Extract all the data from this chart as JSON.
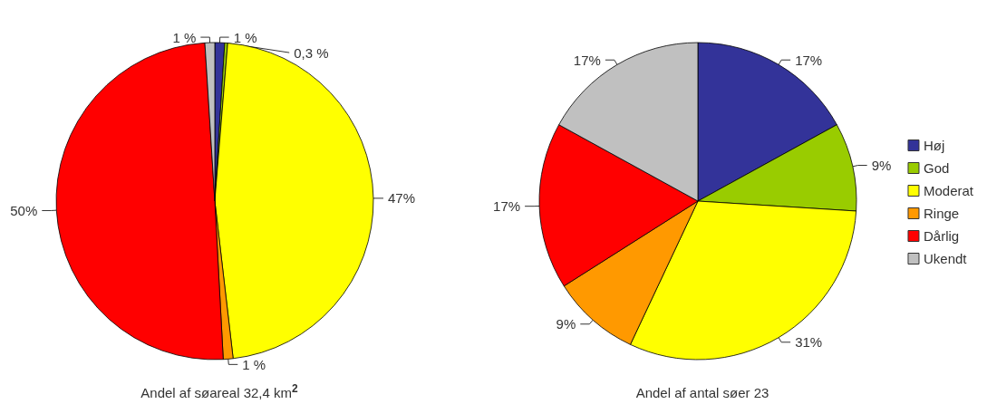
{
  "chart_data": [
    {
      "type": "pie",
      "title": "Andel af søareal 32,4 km$^{2}$",
      "categories": [
        null,
        null,
        null,
        null,
        null,
        null
      ],
      "values": [
        1,
        0.3,
        47,
        1,
        50,
        1
      ],
      "value_labels": [
        "1 %",
        "0,3 %",
        "47%",
        "1 %",
        "50%",
        "1 %"
      ],
      "colors": [
        "#333399",
        "#99cc00",
        "#ffff00",
        "#ff9900",
        "#ff0000",
        "#c0c0c0"
      ],
      "legend": false
    },
    {
      "type": "pie",
      "title": "Andel af antal søer 23",
      "categories": [
        "Høj",
        "God",
        "Moderat",
        "Ringe",
        "Dårlig",
        "Ukendt"
      ],
      "values": [
        17,
        9,
        31,
        9,
        17,
        17
      ],
      "value_labels": [
        "17%",
        "9%",
        "31%",
        "9%",
        "17%",
        "17%"
      ],
      "colors": [
        "#333399",
        "#99cc00",
        "#ffff00",
        "#ff9900",
        "#ff0000",
        "#c0c0c0"
      ],
      "legend": "right"
    }
  ]
}
